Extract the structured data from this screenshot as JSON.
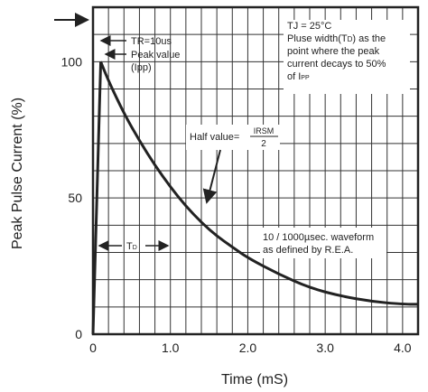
{
  "chart_data": {
    "type": "line",
    "xlabel": "Time (mS)",
    "ylabel": "Peak Pulse Current (%)",
    "x_ticks": [
      "0",
      "1.0",
      "2.0",
      "3.0",
      "4.0"
    ],
    "y_ticks": [
      "0",
      "50",
      "100"
    ],
    "xlim": [
      0,
      4.2
    ],
    "ylim": [
      0,
      120
    ],
    "grid": true,
    "series": [
      {
        "x": [
          0,
          0.1,
          0.2,
          0.4,
          0.6,
          0.8,
          1.0,
          1.2,
          1.4,
          1.6,
          1.8,
          2.0,
          2.4,
          2.8,
          3.2,
          3.6,
          4.0,
          4.2
        ],
        "y": [
          0,
          100,
          93,
          81,
          71,
          62,
          54,
          47,
          41,
          36,
          32,
          28,
          22,
          17,
          14,
          12,
          11,
          11
        ]
      }
    ],
    "annotations": {
      "tr": "TR=10us",
      "peak_line1": "Peak value",
      "peak_line2": "(Ipp)",
      "tj": "TJ = 25°C",
      "pulse_width_prefix": "Pluse width(T",
      "pulse_width_sub": "D",
      "pulse_width_suffix": ") as the",
      "note_line2": "point where the peak",
      "note_line3": "current decays to 50%",
      "note_line4_prefix": "of I",
      "note_line4_sub": "PP",
      "half_value": "Half value=",
      "frac_num": "IRSM",
      "frac_den": "2",
      "td": "T",
      "td_sub": "D",
      "waveform_line1": "10 / 1000µsec. waveform",
      "waveform_line2": "as defined by R.E.A."
    }
  }
}
